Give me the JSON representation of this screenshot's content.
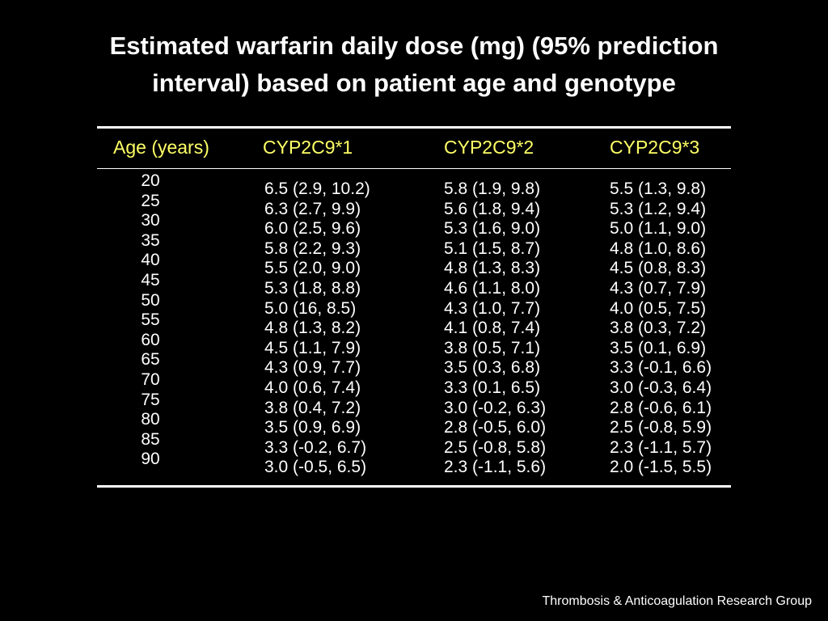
{
  "title": {
    "line1": "Estimated warfarin daily dose (mg) (95% prediction",
    "line2": "interval) based on patient age and genotype"
  },
  "table": {
    "headers": [
      "Age (years)",
      "CYP2C9*1",
      "CYP2C9*2",
      "CYP2C9*3"
    ],
    "ages": [
      "20",
      "25",
      "30",
      "35",
      "40",
      "45",
      "50",
      "55",
      "60",
      "65",
      "70",
      "75",
      "80",
      "85",
      "90"
    ],
    "cyp2c9_1": [
      "6.5 (2.9, 10.2)",
      "6.3 (2.7, 9.9)",
      "6.0 (2.5, 9.6)",
      "5.8 (2.2, 9.3)",
      "5.5 (2.0, 9.0)",
      "5.3 (1.8, 8.8)",
      "5.0 (16, 8.5)",
      "4.8 (1.3, 8.2)",
      "4.5 (1.1, 7.9)",
      "4.3 (0.9, 7.7)",
      "4.0 (0.6, 7.4)",
      "3.8 (0.4, 7.2)",
      "3.5 (0.9, 6.9)",
      "3.3 (-0.2, 6.7)",
      "3.0 (-0.5, 6.5)"
    ],
    "cyp2c9_2": [
      "5.8 (1.9, 9.8)",
      "5.6 (1.8, 9.4)",
      "5.3 (1.6, 9.0)",
      "5.1 (1.5, 8.7)",
      "4.8 (1.3, 8.3)",
      "4.6 (1.1, 8.0)",
      "4.3 (1.0, 7.7)",
      "4.1 (0.8, 7.4)",
      "3.8 (0.5, 7.1)",
      "3.5 (0.3, 6.8)",
      "3.3 (0.1, 6.5)",
      "3.0 (-0.2, 6.3)",
      "2.8 (-0.5, 6.0)",
      "2.5 (-0.8, 5.8)",
      "2.3 (-1.1, 5.6)"
    ],
    "cyp2c9_3": [
      "5.5 (1.3, 9.8)",
      "5.3 (1.2, 9.4)",
      "5.0 (1.1, 9.0)",
      "4.8 (1.0, 8.6)",
      "4.5 (0.8, 8.3)",
      "4.3 (0.7, 7.9)",
      "4.0 (0.5, 7.5)",
      "3.8 (0.3, 7.2)",
      "3.5 (0.1, 6.9)",
      "3.3 (-0.1, 6.6)",
      "3.0 (-0.3, 6.4)",
      "2.8 (-0.6, 6.1)",
      "2.5 (-0.8, 5.9)",
      "2.3 (-1.1, 5.7)",
      "2.0 (-1.5, 5.5)"
    ]
  },
  "footer": {
    "text": "Thrombosis & Anticoagulation Research Group"
  },
  "colors": {
    "background": "#000000",
    "text": "#ffffff",
    "header_text": "#ffff66"
  }
}
